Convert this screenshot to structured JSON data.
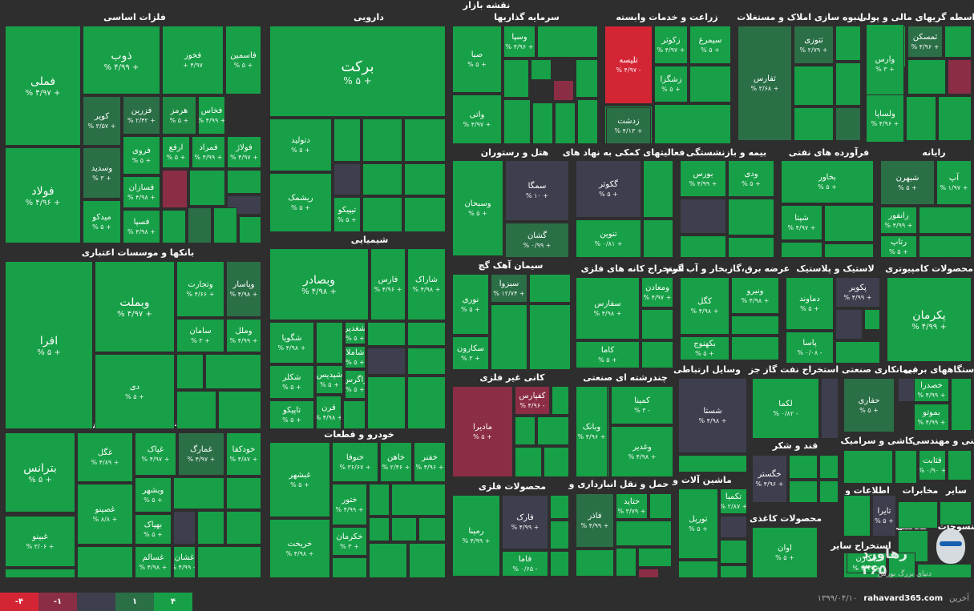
{
  "title": "نقشه بازار",
  "colors": {
    "g4": "#17a047",
    "g3": "#1f8a43",
    "g2": "#2b6f47",
    "g1": "#2e5a42",
    "n0": "#3e3f4e",
    "r1": "#8b2e45",
    "r4": "#d42535"
  },
  "sectors": [
    {
      "name": "فلزات اساسی"
    },
    {
      "name": "دارویی"
    },
    {
      "name": "سرمایه گذاریها"
    },
    {
      "name": "زراعت و خدمات وابسته"
    },
    {
      "name": "انبوه سازی املاک و مستغلات"
    },
    {
      "name": "واسطه گریهای مالی و پولی"
    },
    {
      "name": "هتل و رستوران"
    },
    {
      "name": "فعالیتهای کمکی به نهاد های"
    },
    {
      "name": "بیمه و بازنشستگی"
    },
    {
      "name": "فرآورده های نفتی"
    },
    {
      "name": "رایانه"
    },
    {
      "name": "بانکها و موسسات اعتباری"
    },
    {
      "name": "شیمیایی"
    },
    {
      "name": "سیمان آهک گچ"
    },
    {
      "name": "استخراج کانه های فلزی"
    },
    {
      "name": "عرضه برق،گازبخار و آب گرم"
    },
    {
      "name": "لاستیک و پلاستیک"
    },
    {
      "name": "محصولات کامپیوتری"
    },
    {
      "name": "کانی غیر فلزی"
    },
    {
      "name": "چندرشته ای صنعتی"
    },
    {
      "name": "وسایل ارتباطی"
    },
    {
      "name": "استخراج نفت گاز جز"
    },
    {
      "name": "بیمانکاری صنعتی"
    },
    {
      "name": "دستگاههای برقی"
    },
    {
      "name": "غذایی بجز قند وشکر"
    },
    {
      "name": "خودرو و قطعات"
    },
    {
      "name": "قند و شکر"
    },
    {
      "name": "کاشی و سرامیک"
    },
    {
      "name": "فنی و مهندسی"
    },
    {
      "name": "محصولات فلزی"
    },
    {
      "name": "حمل و نقل انبارداری و"
    },
    {
      "name": "ماشین آلات و"
    },
    {
      "name": "اطلاعات و"
    },
    {
      "name": "مخابرات"
    },
    {
      "name": "سایر"
    },
    {
      "name": "منسوجات"
    },
    {
      "name": "محصولات کاغذی"
    },
    {
      "name": "استخراج سایر"
    },
    {
      "name": "فعالیتها"
    }
  ],
  "tiles": [
    {
      "n": "فملی",
      "p": "% ۴/۹۷ +"
    },
    {
      "n": "ذوب",
      "p": "% ۴/۹۹ +"
    },
    {
      "n": "فخوز",
      "p": "+ ۴/۹۷"
    },
    {
      "n": "فاسمین",
      "p": "% ۵ +"
    },
    {
      "n": "فولاد",
      "p": "% ۴/۹۶ +"
    },
    {
      "n": "کویر",
      "p": "% ۳/۵۷ +"
    },
    {
      "n": "فزرین",
      "p": "% ۲/۴۲ +"
    },
    {
      "n": "هرمز",
      "p": "% ۵ +"
    },
    {
      "n": "فخاس",
      "p": "% ۴/۹۹ +"
    },
    {
      "n": "فروی",
      "p": "% ۵ +"
    },
    {
      "n": "ارفع",
      "p": "% ۵ +"
    },
    {
      "n": "فمراد",
      "p": "% ۴/۹۹ +"
    },
    {
      "n": "فولاژ",
      "p": "% ۴/۹۷ +"
    },
    {
      "n": "وسدید",
      "p": "% ۳ +"
    },
    {
      "n": "فسازان",
      "p": "% ۴/۹۸ +"
    },
    {
      "n": "میدکو",
      "p": "% ۵ +"
    },
    {
      "n": "فسپا",
      "p": "% ۴/۹۸ +"
    },
    {
      "n": "برکت",
      "p": "% ۵ +"
    },
    {
      "n": "دتولید",
      "p": "% ۵ +"
    },
    {
      "n": "ریشمک",
      "p": "% ۵ +"
    },
    {
      "n": "تیپیکو",
      "p": "% ۵ +"
    },
    {
      "n": "صبا",
      "p": "% ۵ +"
    },
    {
      "n": "وسپا",
      "p": "% ۴/۹۶ +"
    },
    {
      "n": "واتی",
      "p": "% ۴/۹۷ +"
    },
    {
      "n": "تلیسه",
      "p": "% ۴/۹۷ -"
    },
    {
      "n": "زکوثر",
      "p": "% ۴/۹۷ +"
    },
    {
      "n": "سیمرغ",
      "p": "% ۵ +"
    },
    {
      "n": "زشگزا",
      "p": "% ۵ +"
    },
    {
      "n": "زدشت",
      "p": "% ۴/۱۳ +"
    },
    {
      "n": "ثفارس",
      "p": "% ۳/۶۸ +"
    },
    {
      "n": "ثتوزی",
      "p": "% ۲/۷۹ +"
    },
    {
      "n": "ثمسکن",
      "p": "% ۴/۹۶ +"
    },
    {
      "n": "وارس",
      "p": "% ۳ +"
    },
    {
      "n": "ولساپا",
      "p": "% ۴/۹۶ +"
    },
    {
      "n": "وسبحان",
      "p": "% ۵ +"
    },
    {
      "n": "سمگا",
      "p": "% ۱۰ +"
    },
    {
      "n": "گشان",
      "p": "% ۰/۹۹ +"
    },
    {
      "n": "گکوثر",
      "p": "% ۵ +"
    },
    {
      "n": "تنوین",
      "p": "% ۰/۸۱ +"
    },
    {
      "n": "بورس",
      "p": "% ۴/۹۹ +"
    },
    {
      "n": "ودی",
      "p": "% ۵ +"
    },
    {
      "n": "بخاور",
      "p": "% ۵ +"
    },
    {
      "n": "شپنا",
      "p": "% ۴/۹۷ +"
    },
    {
      "n": "شبهرن",
      "p": "% ۵ +"
    },
    {
      "n": "آپ",
      "p": "% ۱/۹۷ +"
    },
    {
      "n": "رانفور",
      "p": "% ۴/۹۹ +"
    },
    {
      "n": "رتاپ",
      "p": "% ۵ +"
    },
    {
      "n": "افرا",
      "p": "% ۵ +"
    },
    {
      "n": "وبملت",
      "p": "% ۴/۹۷ +"
    },
    {
      "n": "وتجارت",
      "p": "% ۴/۶۶ +"
    },
    {
      "n": "وپاسار",
      "p": "% ۴/۹۸ +"
    },
    {
      "n": "سامان",
      "p": "% ۳ +"
    },
    {
      "n": "وملل",
      "p": "% ۴/۹۹ +"
    },
    {
      "n": "دی",
      "p": "% ۵ +"
    },
    {
      "n": "وبصادر",
      "p": "% ۴/۹۸ +"
    },
    {
      "n": "فارس",
      "p": "% ۴/۹۶ +"
    },
    {
      "n": "شاراک",
      "p": "% ۴/۹۸ +"
    },
    {
      "n": "شگویا",
      "p": "% ۴/۹۸ +"
    },
    {
      "n": "شغدیر",
      "p": "% ۵ +"
    },
    {
      "n": "شاملا",
      "p": "% ۵ +"
    },
    {
      "n": "شکلر",
      "p": "% ۵ +"
    },
    {
      "n": "شپدیس",
      "p": "% ۵ +"
    },
    {
      "n": "زاگرس",
      "p": "% ۵ +"
    },
    {
      "n": "تاپیکو",
      "p": "% ۵ +"
    },
    {
      "n": "قرن",
      "p": "% ۴/۹۸ +"
    },
    {
      "n": "نوری",
      "p": "% ۵ +"
    },
    {
      "n": "سبزوا",
      "p": "% ۱۲/۷۴ +"
    },
    {
      "n": "سکارون",
      "p": "% ۳ +"
    },
    {
      "n": "سفارس",
      "p": "% ۴/۹۸ +"
    },
    {
      "n": "ومعادن",
      "p": "% ۴/۹۷ +"
    },
    {
      "n": "کاما",
      "p": "% ۵ +"
    },
    {
      "n": "کگل",
      "p": "% ۴/۹۸ +"
    },
    {
      "n": "ونیرو",
      "p": "% ۴/۹۸ +"
    },
    {
      "n": "بکهنوج",
      "p": "% ۵ +"
    },
    {
      "n": "دماوند",
      "p": "% ۵ +"
    },
    {
      "n": "پکویر",
      "p": "% ۴/۹۹ +"
    },
    {
      "n": "پاسا",
      "p": "% ۰/۰۸ -"
    },
    {
      "n": "پکرمان",
      "p": "% ۴/۹۹ +"
    },
    {
      "n": "مادیرا",
      "p": "% ۵ +"
    },
    {
      "n": "کفپارس",
      "p": "% ۴/۹۶ -"
    },
    {
      "n": "کمینا",
      "p": "% ۳ -"
    },
    {
      "n": "وبانک",
      "p": "% ۴/۹۶ +"
    },
    {
      "n": "وغدیر",
      "p": "% ۴/۹۸ +"
    },
    {
      "n": "شستا",
      "p": "% ۴/۹۸ +"
    },
    {
      "n": "لکما",
      "p": "% ۰/۸۲ -"
    },
    {
      "n": "حفاری",
      "p": "% ۵ +"
    },
    {
      "n": "خصدرا",
      "p": "% ۴/۹۹ +"
    },
    {
      "n": "بموتو",
      "p": "% ۴/۹۹ +"
    },
    {
      "n": "بترانس",
      "p": "% ۵ +"
    },
    {
      "n": "غگل",
      "p": "% ۴/۸۹ +"
    },
    {
      "n": "غپاک",
      "p": "% ۴/۹۷ +"
    },
    {
      "n": "غمارگ",
      "p": "% ۴/۹۷ +"
    },
    {
      "n": "خودکفا",
      "p": "% ۴/۸۷ +"
    },
    {
      "n": "وبشهر",
      "p": "% ۵ +"
    },
    {
      "n": "بهپاک",
      "p": "% ۵ +"
    },
    {
      "n": "غصینو",
      "p": "% ۸/۸ +"
    },
    {
      "n": "غبینو",
      "p": "% ۳/۰۶ +"
    },
    {
      "n": "غسالم",
      "p": "% ۴/۹۸ +"
    },
    {
      "n": "غشان",
      "p": "% ۴/۹۹ +"
    },
    {
      "n": "غبشهر",
      "p": "% ۵ +"
    },
    {
      "n": "خنوفا",
      "p": "% ۳۶/۶۷ +"
    },
    {
      "n": "خاهن",
      "p": "% ۲/۴۶ +"
    },
    {
      "n": "خفنر",
      "p": "% ۴/۹۶ +"
    },
    {
      "n": "ختور",
      "p": "% ۴/۹۹ +"
    },
    {
      "n": "خکرمان",
      "p": "% ۳ +"
    },
    {
      "n": "خریخت",
      "p": "% ۴/۹۸ +"
    },
    {
      "n": "خگستر",
      "p": "% ۴/۹۶ +"
    },
    {
      "n": "قثابت",
      "p": "% ۰/۹۰ +"
    },
    {
      "n": "رمپنا",
      "p": "% ۴/۹۹ +"
    },
    {
      "n": "فارک",
      "p": "% ۴/۹۹ +"
    },
    {
      "n": "فاما",
      "p": "% ۰/۶۵ -"
    },
    {
      "n": "فاذر",
      "p": "% ۴/۹۹ +"
    },
    {
      "n": "حتاید",
      "p": "% ۳/۷۹ +"
    },
    {
      "n": "تورپل",
      "p": "% ۵ +"
    },
    {
      "n": "تکمبا",
      "p": "% ۲/۸۷ +"
    },
    {
      "n": "تایرا",
      "p": "% ۵ +"
    },
    {
      "n": "اوان",
      "p": "% ۵ +"
    },
    {
      "n": "چکارن",
      "p": "% ۴/۹۹ +"
    },
    {
      "n": "کماسه",
      "p": "% ۵ +"
    }
  ],
  "legend": [
    "-۴",
    "-۱",
    "",
    "۱",
    "۴"
  ],
  "footer": {
    "date": "۱۳۹۹/۰۴/۱۰",
    "site": "rahavard365.com",
    "updated": "آخرین"
  },
  "brand": {
    "title": "رهاورد ۳۶۵",
    "sub": "دنیای بزرگ بورس"
  }
}
